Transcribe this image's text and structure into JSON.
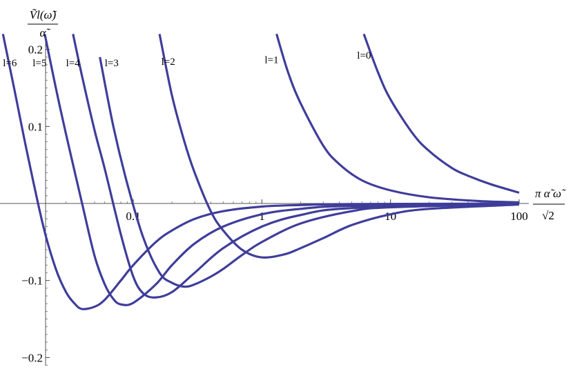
{
  "chart_data": {
    "type": "line",
    "x_scale": "log",
    "xlim": [
      0.01,
      100
    ],
    "ylim": [
      -0.21,
      0.22
    ],
    "grid": false,
    "legend": "none",
    "line_color": "#3f3d9a",
    "ylabel": {
      "numerator": "Ṽl(ω̃)",
      "denominator": "α̃"
    },
    "xlabel": {
      "numerator": "π α̃ ω̃",
      "denominator": "√2"
    },
    "x_ticks": [
      {
        "value": 0.1,
        "label": "0.1"
      },
      {
        "value": 1,
        "label": "1"
      },
      {
        "value": 10,
        "label": "10"
      },
      {
        "value": 100,
        "label": "100"
      }
    ],
    "y_ticks": [
      {
        "value": 0.2,
        "label": "0.2"
      },
      {
        "value": 0.1,
        "label": "0.1"
      },
      {
        "value": -0.1,
        "label": "−0.1"
      },
      {
        "value": -0.2,
        "label": "−0.2"
      }
    ],
    "series": [
      {
        "name": "l=0",
        "x": [
          6.2,
          8,
          10,
          15,
          20,
          30,
          40,
          60,
          100
        ],
        "y": [
          0.22,
          0.17,
          0.135,
          0.09,
          0.068,
          0.046,
          0.036,
          0.025,
          0.014
        ]
      },
      {
        "name": "l=1",
        "x": [
          1.3,
          1.6,
          2,
          3,
          4,
          6,
          10,
          20,
          50,
          100
        ],
        "y": [
          0.22,
          0.17,
          0.13,
          0.075,
          0.051,
          0.03,
          0.017,
          0.008,
          0.003,
          0.0015
        ]
      },
      {
        "name": "l=2",
        "x": [
          0.16,
          0.2,
          0.25,
          0.3,
          0.4,
          0.5,
          0.7,
          1,
          1.5,
          2,
          3,
          5,
          10,
          20,
          100
        ],
        "y": [
          0.22,
          0.14,
          0.08,
          0.04,
          -0.01,
          -0.035,
          -0.06,
          -0.07,
          -0.066,
          -0.058,
          -0.045,
          -0.028,
          -0.014,
          -0.007,
          -0.0014
        ]
      },
      {
        "name": "l=3",
        "x": [
          0.055,
          0.07,
          0.09,
          0.12,
          0.16,
          0.2,
          0.25,
          0.3,
          0.4,
          0.5,
          0.7,
          1,
          2,
          5,
          10,
          100
        ],
        "y": [
          0.19,
          0.1,
          0.025,
          -0.045,
          -0.09,
          -0.103,
          -0.108,
          -0.105,
          -0.095,
          -0.085,
          -0.067,
          -0.05,
          -0.026,
          -0.01,
          -0.005,
          -0.0005
        ]
      },
      {
        "name": "l=4",
        "x": [
          0.034,
          0.04,
          0.05,
          0.06,
          0.08,
          0.1,
          0.12,
          0.15,
          0.2,
          0.3,
          0.5,
          1,
          2,
          5,
          100
        ],
        "y": [
          0.22,
          0.165,
          0.095,
          0.045,
          -0.04,
          -0.095,
          -0.117,
          -0.122,
          -0.115,
          -0.09,
          -0.058,
          -0.03,
          -0.015,
          -0.006,
          -0.0003
        ]
      },
      {
        "name": "l=5",
        "x": [
          0.0205,
          0.025,
          0.03,
          0.04,
          0.05,
          0.06,
          0.07,
          0.08,
          0.1,
          0.15,
          0.2,
          0.3,
          0.5,
          1,
          2,
          5,
          100
        ],
        "y": [
          0.22,
          0.15,
          0.09,
          0.0,
          -0.068,
          -0.105,
          -0.124,
          -0.131,
          -0.129,
          -0.105,
          -0.08,
          -0.052,
          -0.03,
          -0.014,
          -0.007,
          -0.003,
          -0.0002
        ]
      },
      {
        "name": "l=6",
        "x": [
          0.0097,
          0.012,
          0.015,
          0.02,
          0.025,
          0.03,
          0.035,
          0.04,
          0.05,
          0.06,
          0.08,
          0.1,
          0.15,
          0.2,
          0.3,
          0.5,
          1,
          2,
          5,
          100
        ],
        "y": [
          0.22,
          0.145,
          0.065,
          -0.03,
          -0.085,
          -0.115,
          -0.13,
          -0.137,
          -0.134,
          -0.125,
          -0.1,
          -0.08,
          -0.05,
          -0.035,
          -0.02,
          -0.01,
          -0.004,
          -0.002,
          -0.0008,
          -0.0001
        ]
      }
    ],
    "curve_labels": [
      {
        "text": "l=6",
        "x": 0.0097,
        "y": 0.178
      },
      {
        "text": "l=5",
        "x": 0.0165,
        "y": 0.178
      },
      {
        "text": "l=4",
        "x": 0.03,
        "y": 0.178
      },
      {
        "text": "l=3",
        "x": 0.06,
        "y": 0.178
      },
      {
        "text": "l=2",
        "x": 0.165,
        "y": 0.18
      },
      {
        "text": "l=1",
        "x": 1.05,
        "y": 0.182
      },
      {
        "text": "l=0",
        "x": 5.5,
        "y": 0.188
      }
    ]
  }
}
